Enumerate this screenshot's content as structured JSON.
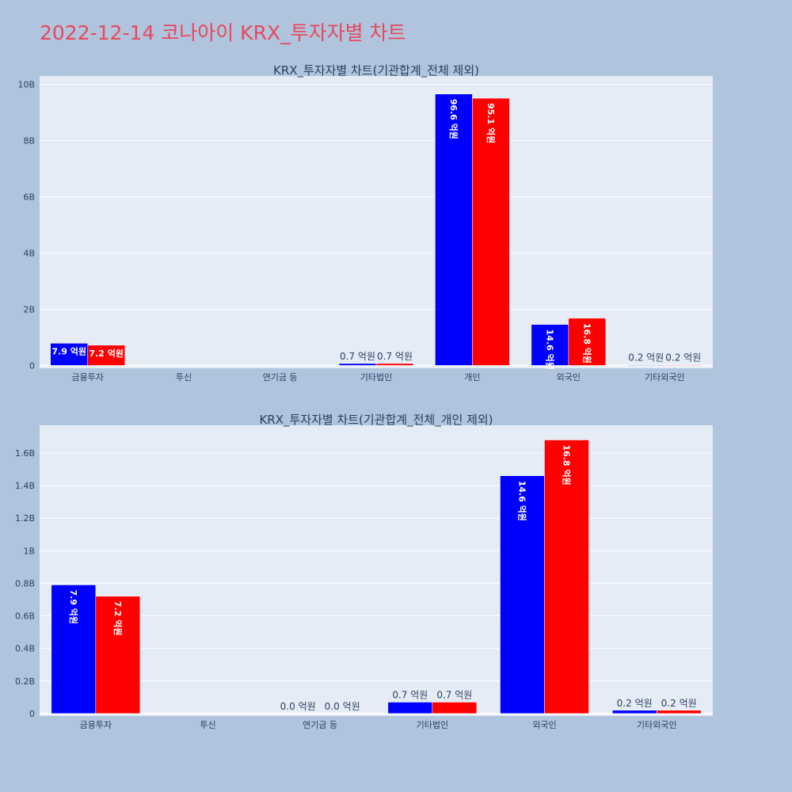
{
  "title": "2022-12-14 코나아이 KRX_투자자별 차트",
  "colors": {
    "series1": "#0000ff",
    "series2": "#ff0000",
    "background": "#b0c4de",
    "plot_bg": "#e5ecf6",
    "title": "#e8485a"
  },
  "chart_data": [
    {
      "type": "bar",
      "title": "KRX_투자자별 차트(기관합계_전체 제외)",
      "categories": [
        "금융투자",
        "투신",
        "연기금 등",
        "기타법인",
        "개인",
        "외국인",
        "기타외국인"
      ],
      "series": [
        {
          "values": [
            790000000,
            0,
            0,
            70000000,
            9660000000,
            1460000000,
            20000000
          ],
          "labels": [
            "7.9 억원",
            "",
            "",
            "0.7 억원",
            "96.6 억원",
            "14.6 억원",
            "0.2 억원"
          ]
        },
        {
          "values": [
            720000000,
            0,
            0,
            70000000,
            9510000000,
            1680000000,
            20000000
          ],
          "labels": [
            "7.2 억원",
            "",
            "",
            "0.7 억원",
            "95.1 억원",
            "16.8 억원",
            "0.2 억원"
          ]
        }
      ],
      "yticks": [
        0,
        2000000000,
        4000000000,
        6000000000,
        8000000000,
        10000000000
      ],
      "ytick_labels": [
        "0",
        "2B",
        "4B",
        "6B",
        "8B",
        "10B"
      ],
      "ylim": [
        -100000000,
        10300000000
      ],
      "grid": true,
      "legend": "none"
    },
    {
      "type": "bar",
      "title": "KRX_투자자별 차트(기관합계_전체_개인 제외)",
      "categories": [
        "금융투자",
        "투신",
        "연기금 등",
        "기타법인",
        "외국인",
        "기타외국인"
      ],
      "series": [
        {
          "values": [
            790000000,
            0,
            0,
            70000000,
            1460000000,
            20000000
          ],
          "labels": [
            "7.9 억원",
            "",
            "0.0 억원",
            "0.7 억원",
            "14.6 억원",
            "0.2 억원"
          ]
        },
        {
          "values": [
            720000000,
            0,
            0,
            70000000,
            1680000000,
            20000000
          ],
          "labels": [
            "7.2 억원",
            "",
            "0.0 억원",
            "0.7 억원",
            "16.8 억원",
            "0.2 억원"
          ]
        }
      ],
      "yticks": [
        0,
        200000000,
        400000000,
        600000000,
        800000000,
        1000000000,
        1200000000,
        1400000000,
        1600000000
      ],
      "ytick_labels": [
        "0",
        "0.2B",
        "0.4B",
        "0.6B",
        "0.8B",
        "1B",
        "1.2B",
        "1.4B",
        "1.6B"
      ],
      "ylim": [
        -15000000,
        1770000000
      ],
      "grid": true,
      "legend": "none"
    }
  ]
}
